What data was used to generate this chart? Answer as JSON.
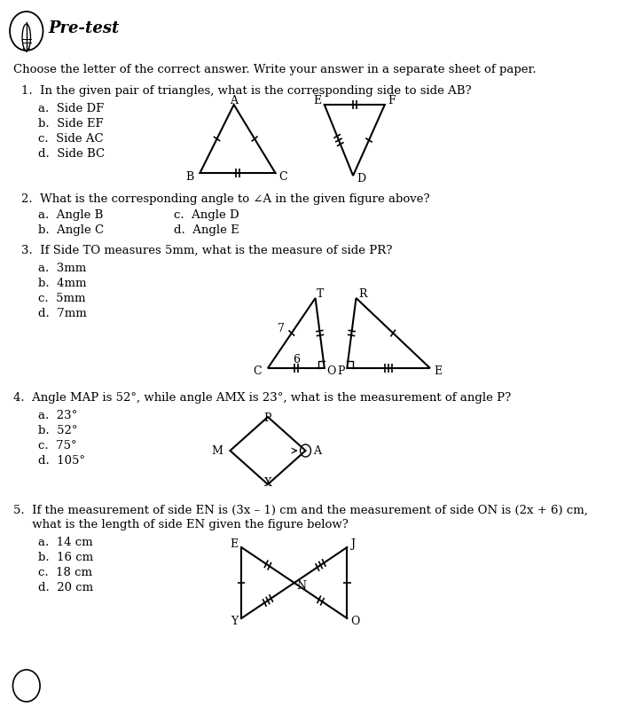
{
  "title": "Pre-test",
  "instruction": "Choose the letter of the correct answer. Write your answer in a separate sheet of paper.",
  "q1_text": "1.  In the given pair of triangles, what is the corresponding side to side AB?",
  "q1_opts": [
    "a.  Side DF",
    "b.  Side EF",
    "c.  Side AC",
    "d.  Side BC"
  ],
  "q2_text": "2.  What is the corresponding angle to ∠A in the given figure above?",
  "q2_opts_left": [
    "a.  Angle B",
    "b.  Angle C"
  ],
  "q2_opts_right": [
    "c.  Angle D",
    "d.  Angle E"
  ],
  "q3_text": "3.  If Side TO measures 5mm, what is the measure of side PR?",
  "q3_opts": [
    "a.  3mm",
    "b.  4mm",
    "c.  5mm",
    "d.  7mm"
  ],
  "q4_text": "4.  Angle MAP is 52°, while angle AMX is 23°, what is the measurement of angle P?",
  "q4_opts": [
    "a.  23°",
    "b.  52°",
    "c.  75°",
    "d.  105°"
  ],
  "q5_text_1": "5.  If the measurement of side EN is (3x – 1) cm and the measurement of side ON is (2x + 6) cm,",
  "q5_text_2": "     what is the length of side EN given the figure below?",
  "q5_opts": [
    "a.  14 cm",
    "b.  16 cm",
    "c.  18 cm",
    "d.  20 cm"
  ],
  "bg_color": "#ffffff",
  "text_color": "#000000"
}
